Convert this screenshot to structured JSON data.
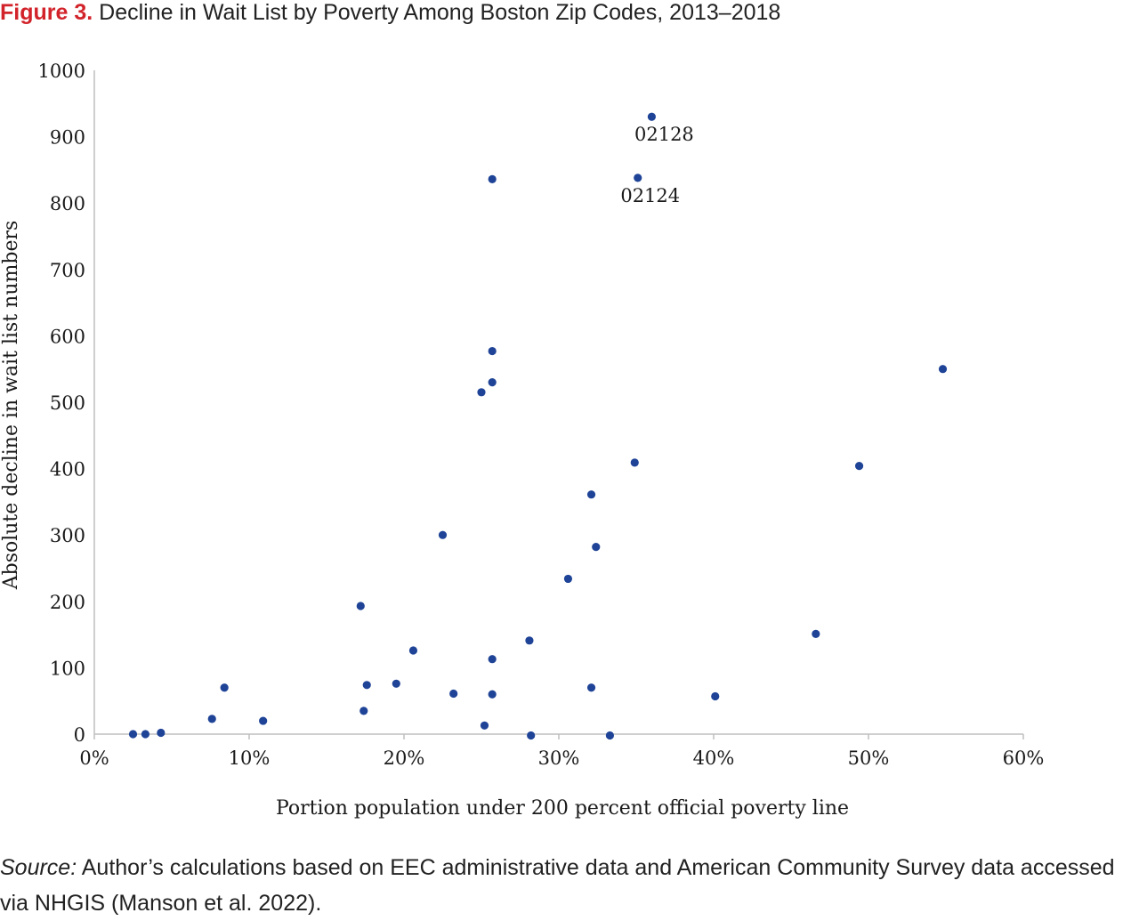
{
  "figure": {
    "label": "Figure 3.",
    "title": "Decline in Wait List by Poverty Among Boston Zip Codes, 2013–2018"
  },
  "source": {
    "lead": "Source:",
    "text": " Author’s calculations based on EEC administrative data and American Community Survey data accessed via NHGIS (Manson et al. 2022)."
  },
  "colors": {
    "point": "#1f4497",
    "axis": "#bfbfbf",
    "figure_label": "#d2232a"
  },
  "chart_data": {
    "type": "scatter",
    "title": "Decline in Wait List by Poverty Among Boston Zip Codes, 2013–2018",
    "xlabel": "Portion population under 200 percent official poverty line",
    "ylabel": "Absolute decline in wait list numbers",
    "xlim": [
      0,
      0.6
    ],
    "ylim": [
      0,
      1000
    ],
    "x_ticks": [
      {
        "value": 0,
        "label": "0%"
      },
      {
        "value": 0.1,
        "label": "10%"
      },
      {
        "value": 0.2,
        "label": "20%"
      },
      {
        "value": 0.3,
        "label": "30%"
      },
      {
        "value": 0.4,
        "label": "40%"
      },
      {
        "value": 0.5,
        "label": "50%"
      },
      {
        "value": 0.6,
        "label": "60%"
      }
    ],
    "y_ticks": [
      {
        "value": 0,
        "label": "0"
      },
      {
        "value": 100,
        "label": "100"
      },
      {
        "value": 200,
        "label": "200"
      },
      {
        "value": 300,
        "label": "300"
      },
      {
        "value": 400,
        "label": "400"
      },
      {
        "value": 500,
        "label": "500"
      },
      {
        "value": 600,
        "label": "600"
      },
      {
        "value": 700,
        "label": "700"
      },
      {
        "value": 800,
        "label": "800"
      },
      {
        "value": 900,
        "label": "900"
      },
      {
        "value": 1000,
        "label": "1000"
      }
    ],
    "grid": false,
    "legend": "none",
    "points": [
      {
        "x": 0.025,
        "y": 0
      },
      {
        "x": 0.033,
        "y": 0
      },
      {
        "x": 0.043,
        "y": 2
      },
      {
        "x": 0.076,
        "y": 23
      },
      {
        "x": 0.084,
        "y": 70
      },
      {
        "x": 0.109,
        "y": 20
      },
      {
        "x": 0.172,
        "y": 193
      },
      {
        "x": 0.174,
        "y": 35
      },
      {
        "x": 0.176,
        "y": 74
      },
      {
        "x": 0.195,
        "y": 76
      },
      {
        "x": 0.206,
        "y": 126
      },
      {
        "x": 0.225,
        "y": 300
      },
      {
        "x": 0.232,
        "y": 61
      },
      {
        "x": 0.25,
        "y": 515
      },
      {
        "x": 0.252,
        "y": 13
      },
      {
        "x": 0.257,
        "y": 836
      },
      {
        "x": 0.257,
        "y": 577
      },
      {
        "x": 0.257,
        "y": 530
      },
      {
        "x": 0.257,
        "y": 113
      },
      {
        "x": 0.257,
        "y": 60
      },
      {
        "x": 0.281,
        "y": 141
      },
      {
        "x": 0.282,
        "y": -2
      },
      {
        "x": 0.306,
        "y": 234
      },
      {
        "x": 0.321,
        "y": 361
      },
      {
        "x": 0.321,
        "y": 70
      },
      {
        "x": 0.324,
        "y": 282
      },
      {
        "x": 0.333,
        "y": -2
      },
      {
        "x": 0.349,
        "y": 409
      },
      {
        "x": 0.351,
        "y": 838,
        "label": "02124"
      },
      {
        "x": 0.36,
        "y": 930,
        "label": "02128"
      },
      {
        "x": 0.401,
        "y": 57
      },
      {
        "x": 0.466,
        "y": 151
      },
      {
        "x": 0.494,
        "y": 404
      },
      {
        "x": 0.548,
        "y": 550
      }
    ]
  }
}
